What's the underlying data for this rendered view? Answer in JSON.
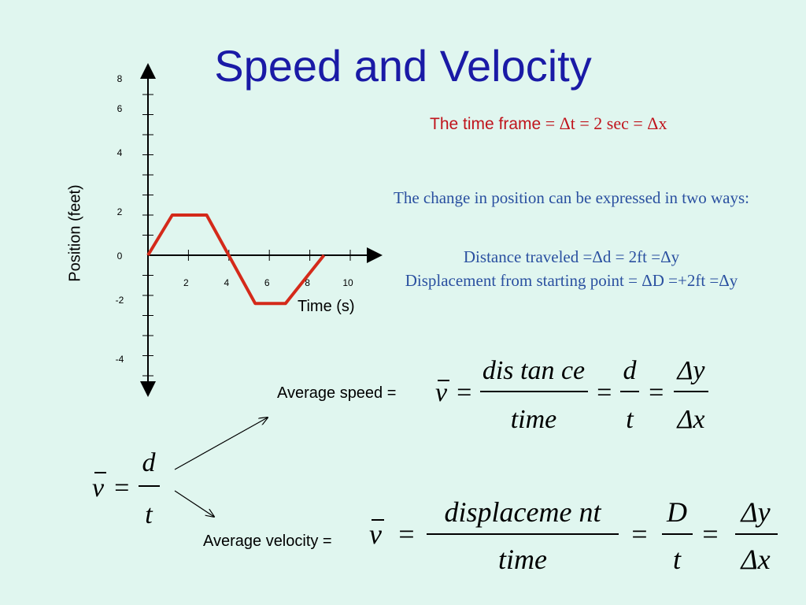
{
  "slide": {
    "title": "Speed and Velocity",
    "time_frame_label": "The time frame",
    "time_frame_formula": " = Δt = 2 sec = Δx",
    "change_text": "The change in position can be expressed in two ways:",
    "distance_text": "Distance traveled =Δd =  2ft =Δy",
    "displacement_text": "Displacement from starting point = ΔD =+2ft =Δy",
    "avg_speed_label": "Average speed =",
    "avg_velocity_label": "Average velocity =",
    "arrow_color": "#000000"
  },
  "formulas": {
    "speed": {
      "v": "v",
      "num1": "dis tan ce",
      "den1": "time",
      "num2": "d",
      "den2": "t",
      "num3": "Δy",
      "den3": "Δx"
    },
    "velocity": {
      "v": "v",
      "num1": "displaceme nt",
      "den1": "time",
      "num2": "D",
      "den2": "t",
      "num3": "Δy",
      "den3": "Δx"
    },
    "small": {
      "v": "v",
      "num": "d",
      "den": "t"
    }
  },
  "chart_data": {
    "type": "line",
    "xlabel": "Time (s)",
    "ylabel": "Position (feet)",
    "x_ticks": [
      2,
      4,
      6,
      8,
      10
    ],
    "y_tick_labels": [
      8,
      6,
      4,
      2,
      0,
      -2,
      -4
    ],
    "series": [
      {
        "x": [
          0,
          1.2,
          2.9,
          5.3,
          6.8,
          8.7
        ],
        "y": [
          0,
          2,
          2,
          -2.4,
          -2.4,
          0
        ],
        "color": "#d42a1a"
      }
    ],
    "line_color": "#d42a1a"
  }
}
